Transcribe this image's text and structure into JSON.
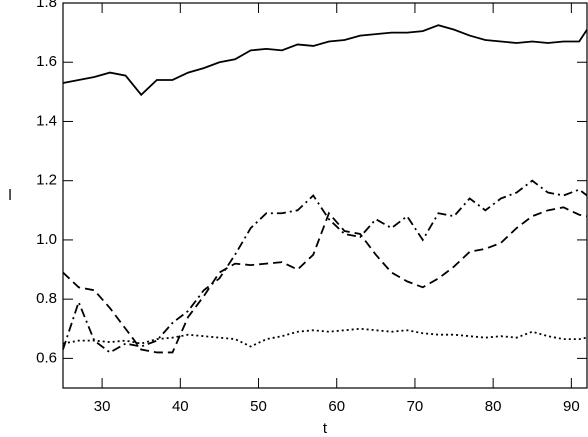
{
  "chart_data": {
    "type": "line",
    "xlabel": "t",
    "ylabel": "l",
    "x": [
      25,
      27,
      29,
      31,
      33,
      35,
      37,
      39,
      41,
      43,
      45,
      47,
      49,
      51,
      53,
      55,
      57,
      59,
      61,
      63,
      65,
      67,
      69,
      71,
      73,
      75,
      77,
      79,
      81,
      83,
      85,
      87,
      89,
      91,
      92
    ],
    "series": [
      {
        "color": "#000000",
        "dash": "solid",
        "values": [
          1.53,
          1.54,
          1.55,
          1.565,
          1.555,
          1.49,
          1.54,
          1.54,
          1.565,
          1.58,
          1.6,
          1.61,
          1.64,
          1.645,
          1.64,
          1.66,
          1.655,
          1.67,
          1.675,
          1.69,
          1.695,
          1.7,
          1.7,
          1.705,
          1.725,
          1.71,
          1.69,
          1.675,
          1.67,
          1.665,
          1.67,
          1.665,
          1.67,
          1.67,
          1.71
        ]
      },
      {
        "color": "#000000",
        "dash": "dashed",
        "values": [
          0.89,
          0.84,
          0.83,
          0.77,
          0.7,
          0.63,
          0.62,
          0.62,
          0.74,
          0.81,
          0.89,
          0.92,
          0.915,
          0.92,
          0.925,
          0.9,
          0.95,
          1.09,
          1.03,
          1.02,
          0.95,
          0.89,
          0.86,
          0.84,
          0.87,
          0.91,
          0.96,
          0.97,
          0.99,
          1.04,
          1.08,
          1.1,
          1.11,
          1.085,
          1.08
        ]
      },
      {
        "color": "#000000",
        "dash": "dashdot",
        "values": [
          0.63,
          0.79,
          0.66,
          0.62,
          0.65,
          0.64,
          0.66,
          0.72,
          0.76,
          0.83,
          0.87,
          0.95,
          1.04,
          1.09,
          1.09,
          1.1,
          1.15,
          1.07,
          1.02,
          1.01,
          1.07,
          1.04,
          1.08,
          1.0,
          1.09,
          1.08,
          1.14,
          1.1,
          1.14,
          1.16,
          1.2,
          1.16,
          1.15,
          1.17,
          1.15
        ]
      },
      {
        "color": "#000000",
        "dash": "dotted",
        "values": [
          0.65,
          0.66,
          0.66,
          0.655,
          0.66,
          0.65,
          0.665,
          0.67,
          0.68,
          0.675,
          0.67,
          0.665,
          0.64,
          0.665,
          0.675,
          0.69,
          0.695,
          0.69,
          0.695,
          0.7,
          0.695,
          0.69,
          0.695,
          0.685,
          0.68,
          0.68,
          0.675,
          0.67,
          0.675,
          0.67,
          0.69,
          0.675,
          0.665,
          0.665,
          0.67
        ]
      }
    ],
    "xlim": [
      25,
      92
    ],
    "ylim": [
      0.5,
      1.8
    ],
    "xticks": [
      30,
      40,
      50,
      60,
      70,
      80,
      90
    ],
    "yticks": [
      0.6,
      0.8,
      {
        "value": 1.0,
        "label": "1.0"
      },
      1.2,
      1.4,
      1.6,
      1.8
    ]
  }
}
